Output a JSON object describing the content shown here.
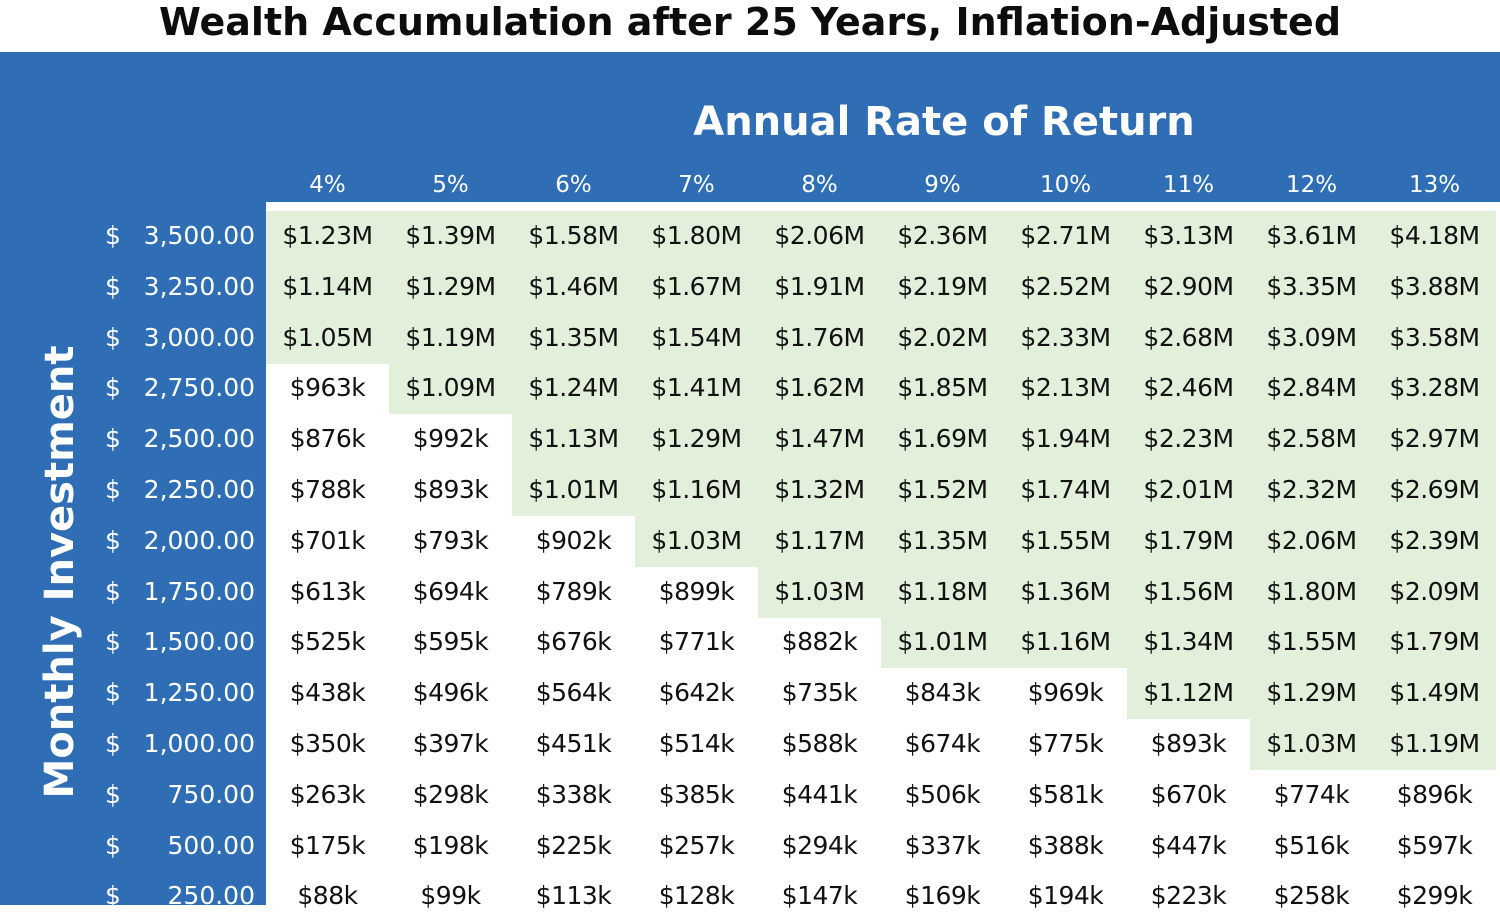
{
  "chart_data": {
    "type": "table",
    "title": "Wealth Accumulation after 25 Years, Inflation-Adjusted",
    "column_header": "Annual Rate of Return",
    "row_header": "Monthly Investment",
    "currency_symbol": "$",
    "columns": [
      "4%",
      "5%",
      "6%",
      "7%",
      "8%",
      "9%",
      "10%",
      "11%",
      "12%",
      "13%"
    ],
    "rows": [
      {
        "amount": "3,500.00",
        "values": [
          "$1.23M",
          "$1.39M",
          "$1.58M",
          "$1.80M",
          "$2.06M",
          "$2.36M",
          "$2.71M",
          "$3.13M",
          "$3.61M",
          "$4.18M"
        ]
      },
      {
        "amount": "3,250.00",
        "values": [
          "$1.14M",
          "$1.29M",
          "$1.46M",
          "$1.67M",
          "$1.91M",
          "$2.19M",
          "$2.52M",
          "$2.90M",
          "$3.35M",
          "$3.88M"
        ]
      },
      {
        "amount": "3,000.00",
        "values": [
          "$1.05M",
          "$1.19M",
          "$1.35M",
          "$1.54M",
          "$1.76M",
          "$2.02M",
          "$2.33M",
          "$2.68M",
          "$3.09M",
          "$3.58M"
        ]
      },
      {
        "amount": "2,750.00",
        "values": [
          "$963k",
          "$1.09M",
          "$1.24M",
          "$1.41M",
          "$1.62M",
          "$1.85M",
          "$2.13M",
          "$2.46M",
          "$2.84M",
          "$3.28M"
        ]
      },
      {
        "amount": "2,500.00",
        "values": [
          "$876k",
          "$992k",
          "$1.13M",
          "$1.29M",
          "$1.47M",
          "$1.69M",
          "$1.94M",
          "$2.23M",
          "$2.58M",
          "$2.97M"
        ]
      },
      {
        "amount": "2,250.00",
        "values": [
          "$788k",
          "$893k",
          "$1.01M",
          "$1.16M",
          "$1.32M",
          "$1.52M",
          "$1.74M",
          "$2.01M",
          "$2.32M",
          "$2.69M"
        ]
      },
      {
        "amount": "2,000.00",
        "values": [
          "$701k",
          "$793k",
          "$902k",
          "$1.03M",
          "$1.17M",
          "$1.35M",
          "$1.55M",
          "$1.79M",
          "$2.06M",
          "$2.39M"
        ]
      },
      {
        "amount": "1,750.00",
        "values": [
          "$613k",
          "$694k",
          "$789k",
          "$899k",
          "$1.03M",
          "$1.18M",
          "$1.36M",
          "$1.56M",
          "$1.80M",
          "$2.09M"
        ]
      },
      {
        "amount": "1,500.00",
        "values": [
          "$525k",
          "$595k",
          "$676k",
          "$771k",
          "$882k",
          "$1.01M",
          "$1.16M",
          "$1.34M",
          "$1.55M",
          "$1.79M"
        ]
      },
      {
        "amount": "1,250.00",
        "values": [
          "$438k",
          "$496k",
          "$564k",
          "$642k",
          "$735k",
          "$843k",
          "$969k",
          "$1.12M",
          "$1.29M",
          "$1.49M"
        ]
      },
      {
        "amount": "1,000.00",
        "values": [
          "$350k",
          "$397k",
          "$451k",
          "$514k",
          "$588k",
          "$674k",
          "$775k",
          "$893k",
          "$1.03M",
          "$1.19M"
        ]
      },
      {
        "amount": "750.00",
        "values": [
          "$263k",
          "$298k",
          "$338k",
          "$385k",
          "$441k",
          "$506k",
          "$581k",
          "$670k",
          "$774k",
          "$896k"
        ]
      },
      {
        "amount": "500.00",
        "values": [
          "$175k",
          "$198k",
          "$225k",
          "$257k",
          "$294k",
          "$337k",
          "$388k",
          "$447k",
          "$516k",
          "$597k"
        ]
      },
      {
        "amount": "250.00",
        "values": [
          "$88k",
          "$99k",
          "$113k",
          "$128k",
          "$147k",
          "$169k",
          "$194k",
          "$223k",
          "$258k",
          "$299k"
        ]
      }
    ],
    "highlight_rule": "values of $1M or more",
    "highlight_color": "#e2efda",
    "header_background": "#2f6db5"
  }
}
